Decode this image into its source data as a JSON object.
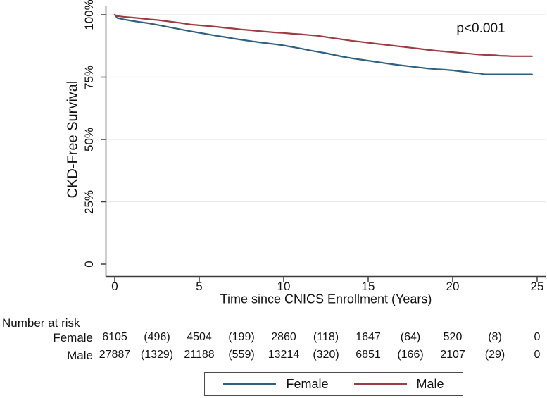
{
  "chart_data": {
    "type": "line",
    "title": "",
    "xlabel": "Time since CNICS Enrollment (Years)",
    "ylabel": "CKD-Free Survival",
    "annotation": "p<0.001",
    "xlim": [
      0,
      25.5
    ],
    "ylim": [
      0,
      100
    ],
    "grid": "horizontal-light",
    "x_ticks": [
      0,
      5,
      10,
      15,
      20,
      25
    ],
    "y_ticks": [
      {
        "value": 0,
        "label": "0"
      },
      {
        "value": 25,
        "label": "25%"
      },
      {
        "value": 50,
        "label": "50%"
      },
      {
        "value": 75,
        "label": "75%"
      },
      {
        "value": 100,
        "label": "100%"
      }
    ],
    "series": [
      {
        "name": "Female",
        "color": "#2f607f",
        "points": [
          [
            0,
            100
          ],
          [
            0.15,
            98.7
          ],
          [
            0.5,
            98.2
          ],
          [
            1,
            97.6
          ],
          [
            1.5,
            97.1
          ],
          [
            2,
            96.6
          ],
          [
            2.5,
            96.0
          ],
          [
            3,
            95.3
          ],
          [
            3.5,
            94.7
          ],
          [
            4,
            94.0
          ],
          [
            4.5,
            93.4
          ],
          [
            5,
            92.8
          ],
          [
            5.5,
            92.2
          ],
          [
            6,
            91.6
          ],
          [
            6.5,
            91.1
          ],
          [
            7,
            90.5
          ],
          [
            7.5,
            90.0
          ],
          [
            8,
            89.5
          ],
          [
            8.5,
            89.0
          ],
          [
            9,
            88.6
          ],
          [
            9.5,
            88.2
          ],
          [
            10,
            87.7
          ],
          [
            10.5,
            87.1
          ],
          [
            11,
            86.5
          ],
          [
            11.5,
            85.8
          ],
          [
            12,
            85.2
          ],
          [
            12.5,
            84.6
          ],
          [
            13,
            83.9
          ],
          [
            13.5,
            83.2
          ],
          [
            14,
            82.6
          ],
          [
            14.5,
            82.1
          ],
          [
            15,
            81.6
          ],
          [
            15.5,
            81.1
          ],
          [
            16,
            80.6
          ],
          [
            16.5,
            80.1
          ],
          [
            17,
            79.7
          ],
          [
            17.5,
            79.3
          ],
          [
            18,
            78.9
          ],
          [
            18.5,
            78.5
          ],
          [
            19,
            78.2
          ],
          [
            19.5,
            78.0
          ],
          [
            20,
            77.7
          ],
          [
            20.5,
            77.3
          ],
          [
            21,
            76.9
          ],
          [
            21.3,
            76.6
          ],
          [
            21.6,
            76.5
          ],
          [
            21.8,
            76.2
          ],
          [
            22,
            76.1
          ],
          [
            24.7,
            76.1
          ]
        ]
      },
      {
        "name": "Male",
        "color": "#9e3c43",
        "points": [
          [
            0,
            100
          ],
          [
            0.15,
            99.5
          ],
          [
            0.5,
            99.2
          ],
          [
            1,
            98.9
          ],
          [
            1.5,
            98.6
          ],
          [
            2,
            98.2
          ],
          [
            2.5,
            97.9
          ],
          [
            3,
            97.5
          ],
          [
            3.5,
            97.1
          ],
          [
            4,
            96.6
          ],
          [
            4.5,
            96.1
          ],
          [
            5,
            95.8
          ],
          [
            5.5,
            95.5
          ],
          [
            6,
            95.2
          ],
          [
            6.5,
            94.8
          ],
          [
            7,
            94.5
          ],
          [
            7.5,
            94.1
          ],
          [
            8,
            93.8
          ],
          [
            8.5,
            93.5
          ],
          [
            9,
            93.2
          ],
          [
            9.5,
            92.9
          ],
          [
            10,
            92.7
          ],
          [
            10.5,
            92.4
          ],
          [
            11,
            92.2
          ],
          [
            11.5,
            91.9
          ],
          [
            12,
            91.6
          ],
          [
            12.5,
            91.1
          ],
          [
            13,
            90.6
          ],
          [
            13.5,
            90.1
          ],
          [
            14,
            89.6
          ],
          [
            14.5,
            89.2
          ],
          [
            15,
            88.8
          ],
          [
            15.5,
            88.4
          ],
          [
            16,
            88.0
          ],
          [
            16.5,
            87.6
          ],
          [
            17,
            87.2
          ],
          [
            17.5,
            86.8
          ],
          [
            18,
            86.4
          ],
          [
            18.5,
            86.0
          ],
          [
            19,
            85.6
          ],
          [
            19.5,
            85.3
          ],
          [
            20,
            85.0
          ],
          [
            20.5,
            84.7
          ],
          [
            21,
            84.4
          ],
          [
            21.5,
            84.1
          ],
          [
            22,
            83.9
          ],
          [
            22.5,
            83.8
          ],
          [
            22.8,
            83.6
          ],
          [
            23.2,
            83.5
          ],
          [
            23.5,
            83.4
          ],
          [
            24.7,
            83.4
          ]
        ]
      }
    ]
  },
  "risk_table": {
    "title": "Number at risk",
    "columns_t": [
      0,
      2.5,
      5,
      7.5,
      10,
      12.5,
      15,
      17.5,
      20,
      22.5,
      25
    ],
    "rows": [
      {
        "label": "Female",
        "values": [
          "6105",
          "(496)",
          "4504",
          "(199)",
          "2860",
          "(118)",
          "1647",
          "(64)",
          "520",
          "(8)",
          "0"
        ]
      },
      {
        "label": "Male",
        "values": [
          "27887",
          "(1329)",
          "21188",
          "(559)",
          "13214",
          "(320)",
          "6851",
          "(166)",
          "2107",
          "(29)",
          "0"
        ]
      }
    ]
  },
  "legend": {
    "items": [
      {
        "label": "Female",
        "color": "#2f607f"
      },
      {
        "label": "Male",
        "color": "#9e3c43"
      }
    ]
  },
  "colors": {
    "axis": "#3c3c3c",
    "gridline": "#e3ebf1",
    "text": "#111111"
  }
}
